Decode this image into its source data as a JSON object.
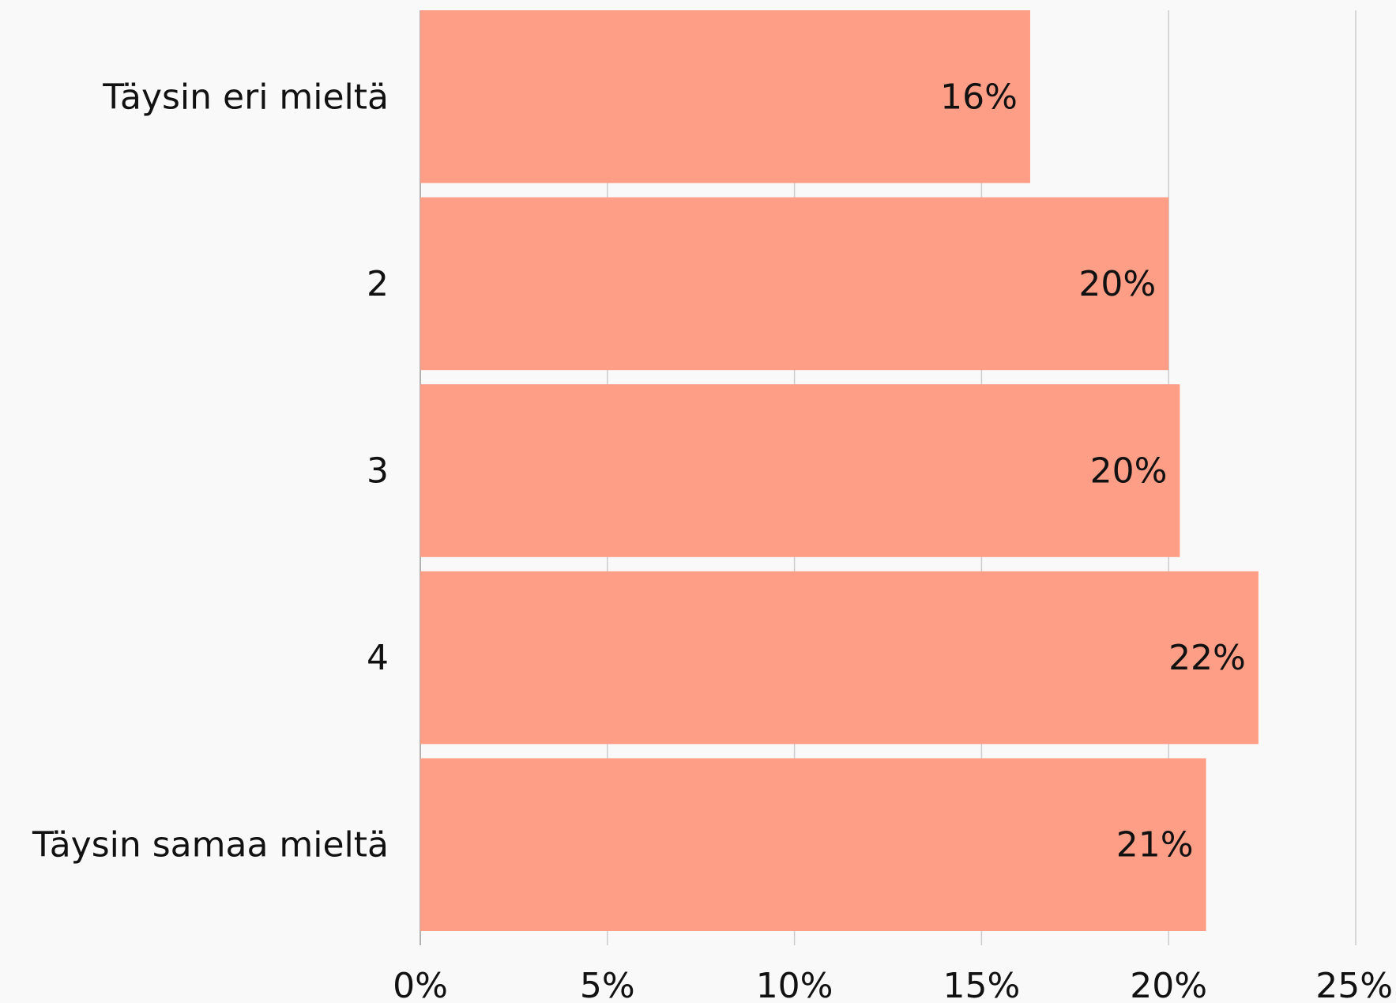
{
  "chart_data": {
    "type": "bar",
    "orientation": "horizontal",
    "categories": [
      "Täysin eri mieltä",
      "2",
      "3",
      "4",
      "Täysin samaa mieltä"
    ],
    "values": [
      16.3,
      20.0,
      20.3,
      22.4,
      21.0
    ],
    "value_labels": [
      "16%",
      "20%",
      "20%",
      "22%",
      "21%"
    ],
    "x_ticks": [
      0,
      5,
      10,
      15,
      20,
      25
    ],
    "x_tick_labels": [
      "0%",
      "5%",
      "10%",
      "15%",
      "20%",
      "25%"
    ],
    "xlim": [
      0,
      25
    ],
    "title": "",
    "xlabel": "",
    "ylabel": "",
    "grid": true,
    "legend": "none",
    "bar_color": "#ff9e87",
    "grid_color": "#cccccc",
    "text_color": "#111111",
    "background": "#f9f9f9"
  }
}
